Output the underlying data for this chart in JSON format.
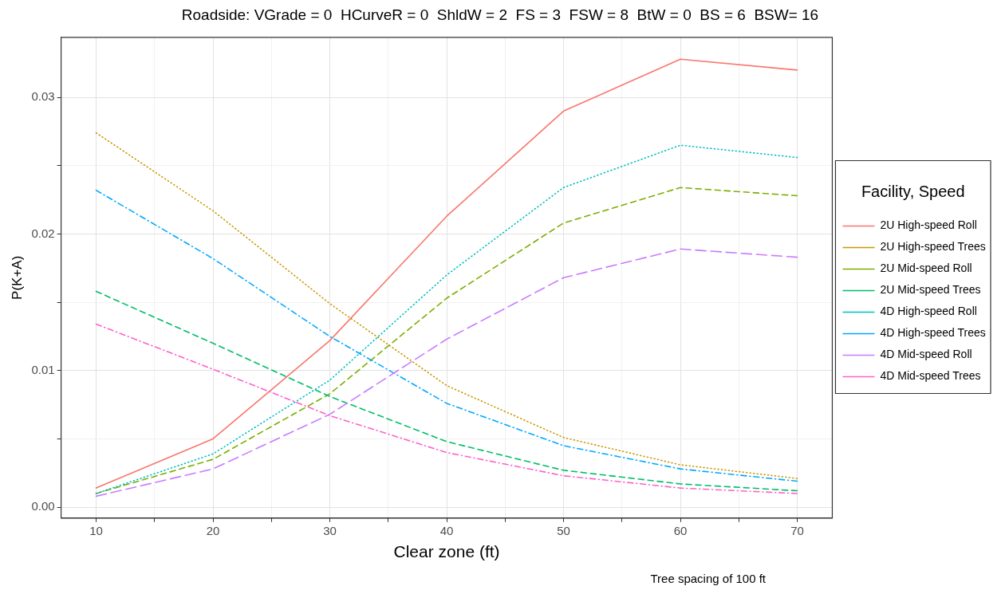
{
  "chart_data": {
    "type": "line",
    "title": "Roadside: VGrade = 0  HCurveR = 0  ShldW = 2  FS = 3  FSW = 8  BtW = 0  BS = 6  BSW= 16",
    "xlabel": "Clear zone (ft)",
    "ylabel": "P(K+A)",
    "legend_title": "Facility, Speed",
    "annotations": [
      "Tree spacing of 100 ft"
    ],
    "x": [
      10,
      20,
      30,
      40,
      50,
      60,
      70
    ],
    "series": [
      {
        "name": "2U High-speed Roll",
        "color": "#f8766d",
        "line_style": "solid",
        "values": [
          0.0014,
          0.005,
          0.0122,
          0.0213,
          0.029,
          0.0328,
          0.032
        ]
      },
      {
        "name": "2U High-speed Trees",
        "color": "#cd9600",
        "line_style": "dotted",
        "values": [
          0.0274,
          0.0217,
          0.0149,
          0.0089,
          0.0051,
          0.0031,
          0.0021
        ]
      },
      {
        "name": "2U Mid-speed Roll",
        "color": "#7cae00",
        "line_style": "dashed",
        "values": [
          0.001,
          0.0035,
          0.0083,
          0.0153,
          0.0208,
          0.0234,
          0.0228
        ]
      },
      {
        "name": "2U Mid-speed Trees",
        "color": "#00be67",
        "line_style": "dashed",
        "values": [
          0.0158,
          0.012,
          0.0081,
          0.0048,
          0.0027,
          0.0017,
          0.0012
        ]
      },
      {
        "name": "4D High-speed Roll",
        "color": "#00bfc4",
        "line_style": "dotted",
        "values": [
          0.001,
          0.0039,
          0.0093,
          0.017,
          0.0234,
          0.0265,
          0.0256
        ]
      },
      {
        "name": "4D High-speed Trees",
        "color": "#00a9ff",
        "line_style": "dashdot",
        "values": [
          0.0232,
          0.0182,
          0.0125,
          0.0076,
          0.0045,
          0.0028,
          0.0019
        ]
      },
      {
        "name": "4D Mid-speed Roll",
        "color": "#c77cff",
        "line_style": "longdash",
        "values": [
          0.0008,
          0.0028,
          0.0068,
          0.0123,
          0.0168,
          0.0189,
          0.0183
        ]
      },
      {
        "name": "4D Mid-speed Trees",
        "color": "#ff61cc",
        "line_style": "dashdot",
        "values": [
          0.0134,
          0.0101,
          0.0067,
          0.004,
          0.0023,
          0.0014,
          0.001
        ]
      }
    ],
    "xlim": [
      7,
      73
    ],
    "xticks": [
      10,
      {
        "value": 15,
        "label": null
      },
      20,
      {
        "value": 25,
        "label": null
      },
      30,
      {
        "value": 35,
        "label": null
      },
      40,
      {
        "value": 45,
        "label": null
      },
      50,
      {
        "value": 55,
        "label": null
      },
      60,
      {
        "value": 65,
        "label": null
      },
      70
    ],
    "ylim": [
      -0.0008,
      0.0344
    ],
    "yticks": [
      {
        "value": 0,
        "label": "0.00"
      },
      {
        "value": 0.005,
        "label": null
      },
      {
        "value": 0.01,
        "label": "0.01"
      },
      {
        "value": 0.015,
        "label": null
      },
      {
        "value": 0.02,
        "label": "0.02"
      },
      {
        "value": 0.025,
        "label": null
      },
      {
        "value": 0.03,
        "label": "0.03"
      }
    ],
    "grid": true,
    "legend": "right",
    "marker": "none"
  }
}
